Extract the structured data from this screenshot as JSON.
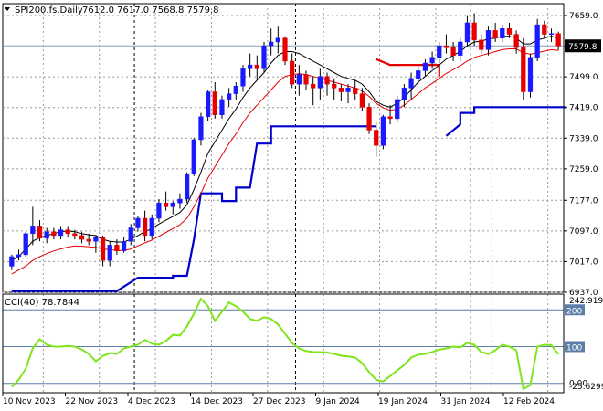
{
  "header": {
    "symbol": "SPI200.fs,Daily",
    "ohlc": "7612.0 7617.0 7568.8 7579.8"
  },
  "indicator": {
    "label": "CCI(40) 78.7844",
    "levels": [
      200,
      100,
      0
    ],
    "scale_top_label": "242.9194",
    "scale_bottom_label": "-25.6299",
    "level_labels": [
      "200",
      "100",
      "0.00"
    ]
  },
  "colors": {
    "bull": "#1a1aff",
    "bear": "#e60000",
    "fast_ma": "#000000",
    "slow_ma": "#e60000",
    "stop_up": "#0000cc",
    "stop_down": "#e60000",
    "cci": "#7fe51c",
    "last_price_bg": "#000000"
  },
  "chart_data": [
    {
      "type": "candlestick",
      "title": "SPI200.fs,Daily",
      "ylim": [
        6937,
        7690
      ],
      "y_ticks": [
        7659,
        7579,
        7499,
        7419,
        7339,
        7259,
        7177,
        7097,
        7017,
        6937
      ],
      "y_tick_labels": [
        "7659.0",
        "7579.8",
        "7499.0",
        "7419.0",
        "7339.0",
        "7259.0",
        "7177.0",
        "7097.0",
        "7017.0",
        "6937.0"
      ],
      "last_price": 7579.8,
      "last_price_label": "7579.8",
      "x_tick_labels": [
        "10 Nov 2023",
        "22 Nov 2023",
        "4 Dec 2023",
        "14 Dec 2023",
        "27 Dec 2023",
        "9 Jan 2024",
        "19 Jan 2024",
        "31 Jan 2024",
        "12 Feb 2024"
      ],
      "candles": [
        [
          7005,
          7035,
          6995,
          7030
        ],
        [
          7030,
          7048,
          7020,
          7035
        ],
        [
          7035,
          7095,
          7030,
          7090
        ],
        [
          7090,
          7160,
          7060,
          7110
        ],
        [
          7110,
          7125,
          7070,
          7078
        ],
        [
          7078,
          7105,
          7065,
          7095
        ],
        [
          7095,
          7105,
          7075,
          7085
        ],
        [
          7085,
          7110,
          7075,
          7100
        ],
        [
          7100,
          7110,
          7080,
          7090
        ],
        [
          7090,
          7100,
          7075,
          7085
        ],
        [
          7085,
          7095,
          7065,
          7075
        ],
        [
          7075,
          7090,
          7060,
          7070
        ],
        [
          7070,
          7085,
          7040,
          7080
        ],
        [
          7080,
          7085,
          7005,
          7020
        ],
        [
          7020,
          7070,
          7005,
          7060
        ],
        [
          7060,
          7075,
          7035,
          7045
        ],
        [
          7045,
          7080,
          7040,
          7070
        ],
        [
          7070,
          7115,
          7060,
          7105
        ],
        [
          7105,
          7135,
          7095,
          7130
        ],
        [
          7130,
          7150,
          7070,
          7085
        ],
        [
          7085,
          7140,
          7075,
          7130
        ],
        [
          7130,
          7180,
          7120,
          7170
        ],
        [
          7170,
          7200,
          7150,
          7160
        ],
        [
          7160,
          7175,
          7140,
          7170
        ],
        [
          7170,
          7195,
          7155,
          7180
        ],
        [
          7180,
          7250,
          7170,
          7245
        ],
        [
          7245,
          7340,
          7240,
          7335
        ],
        [
          7335,
          7405,
          7320,
          7395
        ],
        [
          7395,
          7465,
          7385,
          7460
        ],
        [
          7460,
          7485,
          7390,
          7400
        ],
        [
          7400,
          7450,
          7390,
          7440
        ],
        [
          7440,
          7470,
          7420,
          7455
        ],
        [
          7455,
          7485,
          7440,
          7475
        ],
        [
          7475,
          7530,
          7460,
          7520
        ],
        [
          7520,
          7560,
          7500,
          7530
        ],
        [
          7530,
          7555,
          7490,
          7520
        ],
        [
          7520,
          7590,
          7510,
          7580
        ],
        [
          7580,
          7625,
          7555,
          7590
        ],
        [
          7590,
          7630,
          7560,
          7600
        ],
        [
          7600,
          7605,
          7530,
          7540
        ],
        [
          7540,
          7560,
          7470,
          7480
        ],
        [
          7480,
          7530,
          7450,
          7505
        ],
        [
          7505,
          7515,
          7465,
          7480
        ],
        [
          7480,
          7500,
          7425,
          7470
        ],
        [
          7470,
          7520,
          7440,
          7500
        ],
        [
          7500,
          7510,
          7450,
          7480
        ],
        [
          7480,
          7495,
          7440,
          7470
        ],
        [
          7470,
          7480,
          7435,
          7460
        ],
        [
          7460,
          7480,
          7430,
          7470
        ],
        [
          7470,
          7490,
          7440,
          7455
        ],
        [
          7455,
          7470,
          7410,
          7420
        ],
        [
          7420,
          7430,
          7350,
          7360
        ],
        [
          7360,
          7380,
          7290,
          7320
        ],
        [
          7320,
          7400,
          7310,
          7395
        ],
        [
          7395,
          7425,
          7375,
          7390
        ],
        [
          7390,
          7450,
          7380,
          7440
        ],
        [
          7440,
          7480,
          7420,
          7470
        ],
        [
          7470,
          7510,
          7440,
          7495
        ],
        [
          7495,
          7525,
          7480,
          7515
        ],
        [
          7515,
          7545,
          7500,
          7535
        ],
        [
          7535,
          7565,
          7520,
          7550
        ],
        [
          7550,
          7590,
          7535,
          7580
        ],
        [
          7580,
          7610,
          7560,
          7575
        ],
        [
          7575,
          7590,
          7540,
          7555
        ],
        [
          7555,
          7600,
          7540,
          7590
        ],
        [
          7590,
          7660,
          7580,
          7640
        ],
        [
          7640,
          7665,
          7580,
          7595
        ],
        [
          7595,
          7610,
          7560,
          7570
        ],
        [
          7570,
          7630,
          7555,
          7620
        ],
        [
          7620,
          7640,
          7590,
          7600
        ],
        [
          7600,
          7635,
          7590,
          7625
        ],
        [
          7625,
          7640,
          7600,
          7610
        ],
        [
          7610,
          7620,
          7560,
          7575
        ],
        [
          7575,
          7600,
          7440,
          7460
        ],
        [
          7460,
          7560,
          7445,
          7550
        ],
        [
          7550,
          7650,
          7540,
          7635
        ],
        [
          7635,
          7645,
          7600,
          7610
        ],
        [
          7610,
          7625,
          7590,
          7612
        ],
        [
          7612,
          7617,
          7568.8,
          7579.8
        ]
      ],
      "fast_ma": [
        7020,
        7030,
        7050,
        7070,
        7080,
        7085,
        7090,
        7095,
        7097,
        7095,
        7090,
        7087,
        7085,
        7075,
        7070,
        7068,
        7068,
        7075,
        7085,
        7095,
        7103,
        7115,
        7125,
        7135,
        7145,
        7165,
        7205,
        7250,
        7300,
        7330,
        7360,
        7390,
        7415,
        7445,
        7470,
        7490,
        7510,
        7535,
        7555,
        7565,
        7565,
        7560,
        7550,
        7540,
        7530,
        7520,
        7510,
        7500,
        7495,
        7490,
        7480,
        7460,
        7435,
        7425,
        7420,
        7430,
        7445,
        7465,
        7485,
        7500,
        7515,
        7530,
        7545,
        7555,
        7565,
        7580,
        7590,
        7592,
        7598,
        7600,
        7605,
        7605,
        7600,
        7585,
        7585,
        7595,
        7600,
        7605,
        7600
      ],
      "slow_ma": [
        6985,
        6995,
        7005,
        7020,
        7030,
        7038,
        7045,
        7050,
        7055,
        7058,
        7057,
        7056,
        7054,
        7050,
        7048,
        7046,
        7046,
        7050,
        7058,
        7066,
        7073,
        7083,
        7093,
        7103,
        7113,
        7130,
        7160,
        7195,
        7235,
        7265,
        7295,
        7325,
        7350,
        7380,
        7405,
        7425,
        7445,
        7465,
        7485,
        7500,
        7505,
        7507,
        7505,
        7500,
        7495,
        7490,
        7485,
        7480,
        7475,
        7470,
        7462,
        7448,
        7430,
        7418,
        7412,
        7415,
        7425,
        7440,
        7455,
        7470,
        7482,
        7495,
        7508,
        7518,
        7528,
        7540,
        7550,
        7555,
        7560,
        7565,
        7570,
        7572,
        7572,
        7562,
        7558,
        7562,
        7566,
        7570,
        7568
      ],
      "stop_up": [
        [
          [
            0,
            6940
          ],
          [
            15,
            6940
          ],
          [
            18,
            6975
          ],
          [
            23,
            6975
          ],
          [
            23,
            6980
          ],
          [
            25,
            6980
          ],
          [
            26,
            7075
          ],
          [
            27,
            7195
          ],
          [
            30,
            7195
          ],
          [
            30,
            7175
          ],
          [
            32,
            7175
          ],
          [
            32,
            7210
          ],
          [
            34,
            7210
          ],
          [
            35,
            7325
          ],
          [
            37,
            7325
          ],
          [
            37,
            7370
          ],
          [
            52,
            7370
          ]
        ],
        [
          [
            62,
            7345
          ],
          [
            64,
            7375
          ],
          [
            64,
            7405
          ],
          [
            66,
            7405
          ],
          [
            66,
            7420
          ],
          [
            79,
            7420
          ]
        ]
      ],
      "stop_down": [
        [
          [
            52,
            7545
          ],
          [
            54,
            7530
          ],
          [
            61,
            7530
          ],
          [
            61,
            7500
          ]
        ]
      ]
    },
    {
      "type": "line",
      "title": "CCI(40) 78.7844",
      "ylim": [
        -25.6299,
        242.9194
      ],
      "levels": [
        200,
        100,
        0
      ],
      "values": [
        -10,
        10,
        40,
        95,
        120,
        105,
        100,
        100,
        102,
        100,
        92,
        80,
        60,
        75,
        82,
        80,
        95,
        100,
        105,
        118,
        108,
        105,
        115,
        132,
        130,
        155,
        190,
        230,
        210,
        170,
        195,
        220,
        210,
        195,
        175,
        170,
        180,
        175,
        160,
        135,
        110,
        95,
        88,
        85,
        85,
        84,
        80,
        75,
        73,
        70,
        55,
        30,
        10,
        5,
        20,
        35,
        50,
        70,
        78,
        80,
        85,
        92,
        95,
        100,
        98,
        110,
        105,
        85,
        80,
        90,
        105,
        100,
        90,
        -15,
        -5,
        100,
        105,
        104,
        78.78
      ]
    }
  ]
}
